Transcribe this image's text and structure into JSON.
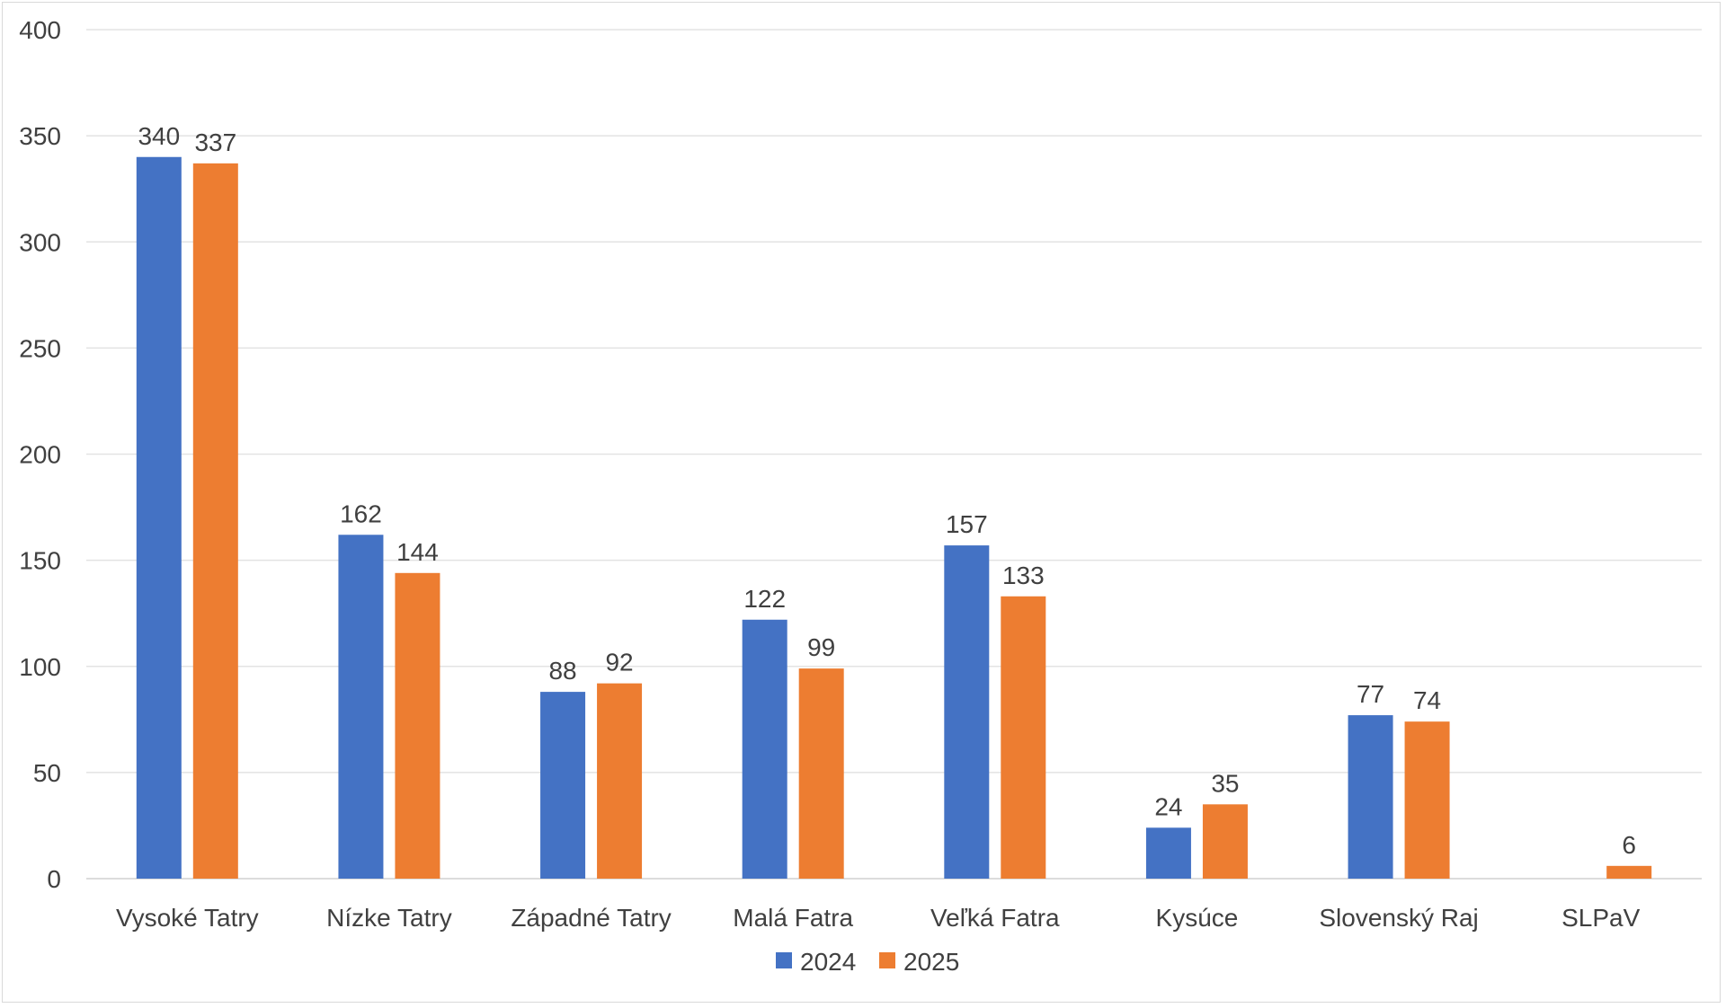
{
  "chart_data": {
    "type": "bar",
    "title": "",
    "xlabel": "",
    "ylabel": "",
    "categories": [
      "Vysoké Tatry",
      "Nízke Tatry",
      "Západné Tatry",
      "Malá Fatra",
      "Veľká Fatra",
      "Kysúce",
      "Slovenský Raj",
      "SLPaV"
    ],
    "series": [
      {
        "name": "2024",
        "color": "#4472C4",
        "values": [
          340,
          162,
          88,
          122,
          157,
          24,
          77,
          null
        ]
      },
      {
        "name": "2025",
        "color": "#ED7D31",
        "values": [
          337,
          144,
          92,
          99,
          133,
          35,
          74,
          6
        ]
      }
    ],
    "ylim": [
      0,
      400
    ],
    "yticks": [
      0,
      50,
      100,
      150,
      200,
      250,
      300,
      350,
      400
    ],
    "grid": true,
    "legend_position": "bottom-center",
    "data_labels": true
  }
}
